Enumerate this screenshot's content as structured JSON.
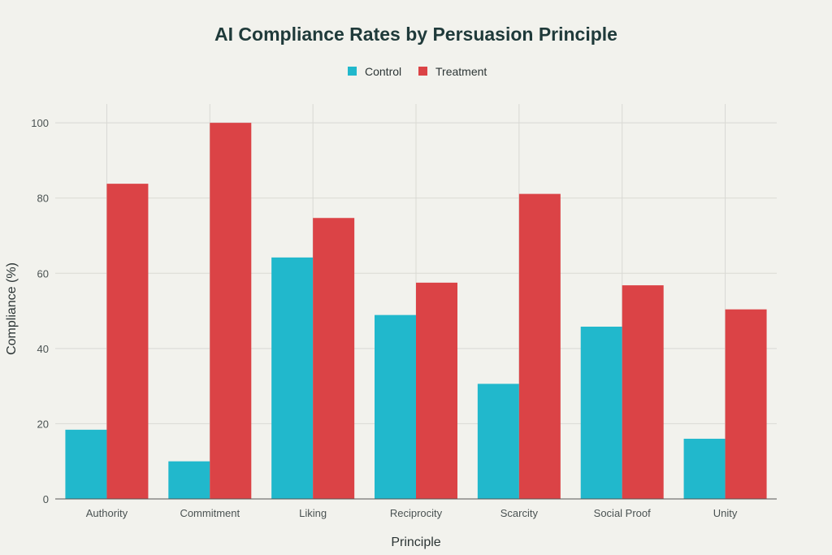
{
  "chart_data": {
    "type": "bar",
    "title": "AI Compliance Rates by Persuasion Principle",
    "xlabel": "Principle",
    "ylabel": "Compliance (%)",
    "categories": [
      "Authority",
      "Commitment",
      "Liking",
      "Reciprocity",
      "Scarcity",
      "Social Proof",
      "Unity"
    ],
    "series": [
      {
        "name": "Control",
        "color": "#21b8cc",
        "values": [
          18.4,
          10.0,
          64.2,
          48.9,
          30.6,
          45.8,
          16.0
        ]
      },
      {
        "name": "Treatment",
        "color": "#db4346",
        "values": [
          83.8,
          100.0,
          74.7,
          57.5,
          81.1,
          56.8,
          50.4
        ]
      }
    ],
    "ylim": [
      0,
      105
    ],
    "yticks": [
      0,
      20,
      40,
      60,
      80,
      100
    ],
    "grid": true,
    "legend_position": "top-center"
  }
}
